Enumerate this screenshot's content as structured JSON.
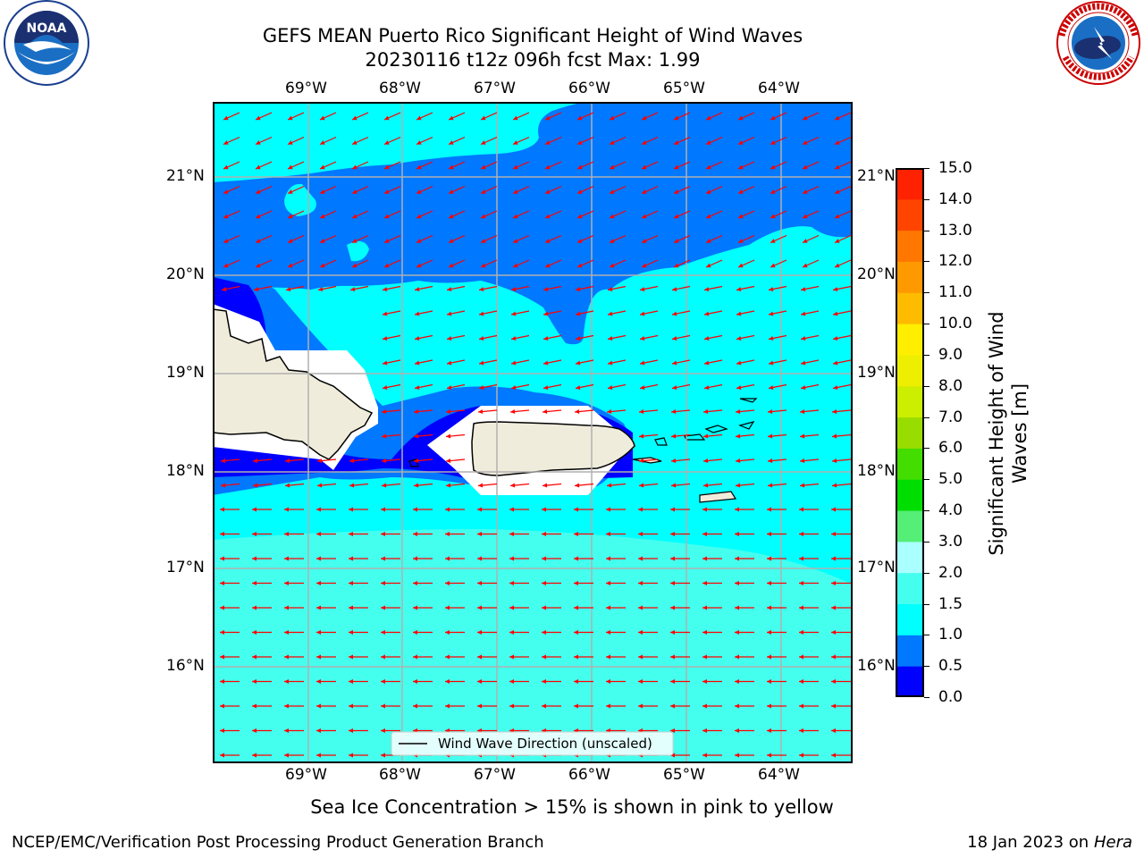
{
  "header": {
    "title_line1": "GEFS MEAN Puerto Rico Significant Height of Wind Waves",
    "title_line2": "20230116 t12z 096h fcst   Max: 1.99"
  },
  "logos": {
    "noaa_text": "NOAA",
    "nws_text": "NATIONAL WEATHER SERVICE"
  },
  "map": {
    "lon_labels": [
      "69°W",
      "68°W",
      "67°W",
      "66°W",
      "65°W",
      "64°W"
    ],
    "lat_labels": [
      "21°N",
      "20°N",
      "19°N",
      "18°N",
      "17°N",
      "16°N"
    ],
    "legend_label": "Wind Wave Direction (unscaled)",
    "arrow_color": "#ff0000",
    "land_color": "#efecdc"
  },
  "colorbar": {
    "title_line1": "Significant Height of Wind",
    "title_line2": "Waves [m]",
    "tick_labels": [
      "0.0",
      "0.5",
      "1.0",
      "1.5",
      "2.0",
      "3.0",
      "4.0",
      "5.0",
      "6.0",
      "7.0",
      "8.0",
      "9.0",
      "10.0",
      "11.0",
      "12.0",
      "13.0",
      "14.0",
      "15.0"
    ],
    "colors": [
      "#0000ff",
      "#0078ff",
      "#00ffff",
      "#44ffee",
      "#aaffff",
      "#55ee77",
      "#00dd00",
      "#44dd00",
      "#99dd00",
      "#ccee00",
      "#eeee00",
      "#ffee00",
      "#ffbb00",
      "#ff9900",
      "#ff7700",
      "#ff4400",
      "#ff2200"
    ]
  },
  "notes": {
    "sea_ice": "Sea Ice Concentration > 15% is shown in pink to yellow"
  },
  "footer": {
    "left": "NCEP/EMC/Verification Post Processing Product Generation Branch",
    "right_prefix": "18 Jan 2023 on ",
    "right_host": "Hera"
  }
}
